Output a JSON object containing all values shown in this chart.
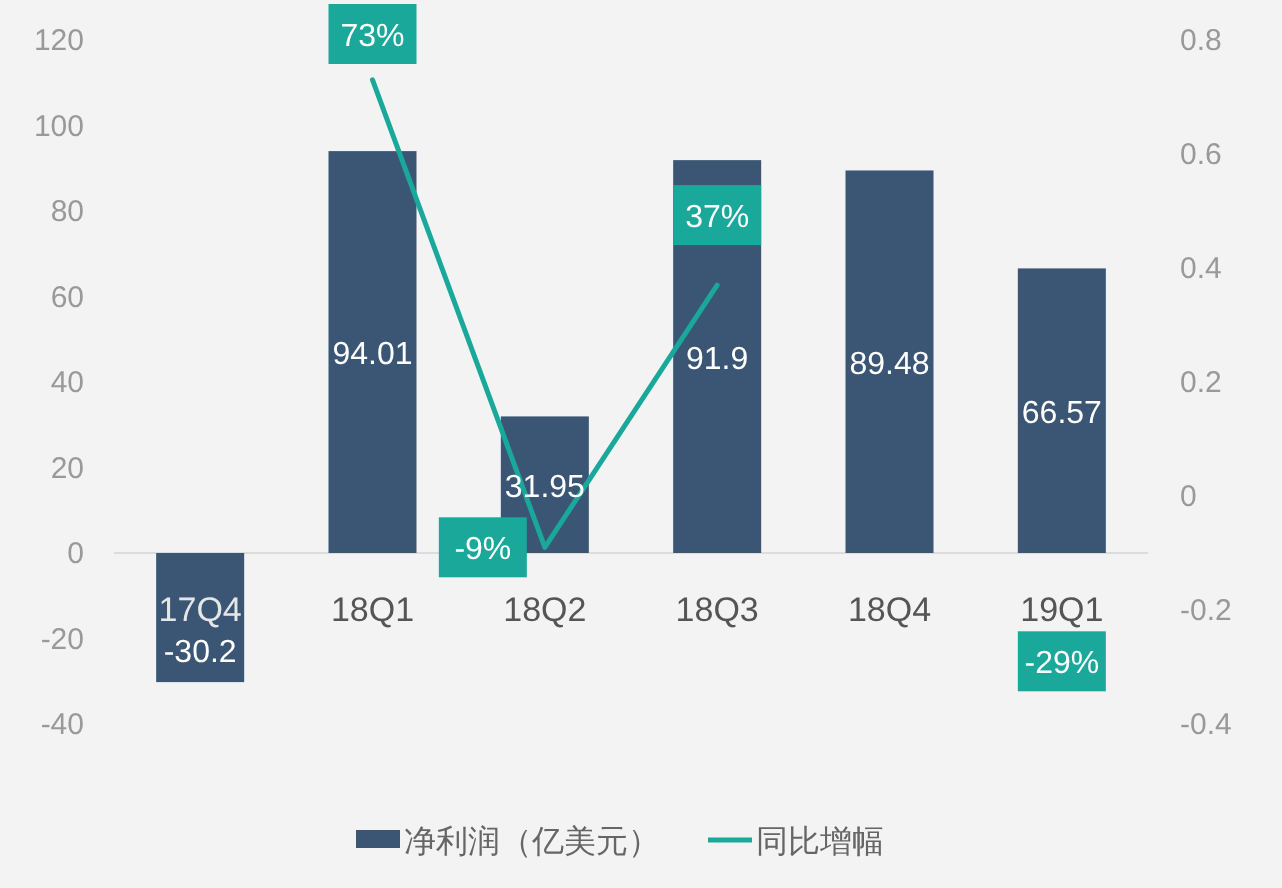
{
  "chart_data": {
    "type": "bar",
    "categories": [
      "17Q4",
      "18Q1",
      "18Q2",
      "18Q3",
      "18Q4",
      "19Q1"
    ],
    "series": [
      {
        "name": "净利润（亿美元）",
        "color": "#3a5674",
        "values": [
          -30.2,
          94.01,
          31.95,
          91.9,
          89.48,
          66.57
        ],
        "value_labels": [
          "-30.2",
          "94.01",
          "31.95",
          "91.9",
          "89.48",
          "66.57"
        ]
      },
      {
        "name": "同比增幅",
        "type": "line",
        "axis": "y2",
        "color": "#1aa89a",
        "marker": "none",
        "values": [
          null,
          0.73,
          -0.09,
          0.37,
          null,
          -0.29
        ],
        "value_labels": [
          null,
          "73%",
          "-9%",
          "37%",
          null,
          "-29%"
        ]
      }
    ],
    "ylim": [
      -40,
      120
    ],
    "yticks": [
      -40,
      -20,
      0,
      20,
      40,
      60,
      80,
      100,
      120
    ],
    "y2lim": [
      -0.4,
      0.8
    ],
    "y2ticks": [
      -0.4,
      -0.2,
      0,
      0.2,
      0.4,
      0.6,
      0.8
    ],
    "grid": false,
    "legend": "bottom"
  }
}
